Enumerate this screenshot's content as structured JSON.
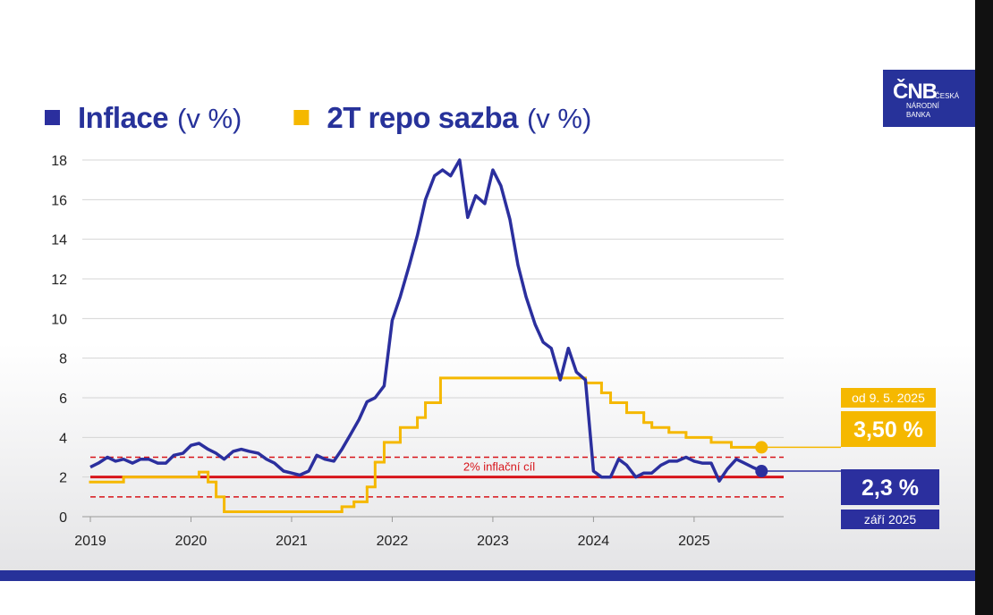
{
  "chart_data": {
    "type": "line",
    "unit": "(v %)",
    "xlim": [
      2019,
      2025.89
    ],
    "xticks": [
      2019,
      2020,
      2021,
      2022,
      2023,
      2024,
      2025
    ],
    "ylim": [
      0,
      18
    ],
    "yticks": [
      0,
      2,
      4,
      6,
      8,
      10,
      12,
      14,
      16,
      18
    ],
    "grid": true,
    "series": [
      {
        "name": "Inflace",
        "color": "#2b2f9e",
        "x": [
          2019.0,
          2019.08,
          2019.17,
          2019.25,
          2019.33,
          2019.42,
          2019.5,
          2019.58,
          2019.67,
          2019.75,
          2019.83,
          2019.92,
          2020.0,
          2020.08,
          2020.17,
          2020.25,
          2020.33,
          2020.42,
          2020.5,
          2020.58,
          2020.67,
          2020.75,
          2020.83,
          2020.92,
          2021.0,
          2021.08,
          2021.17,
          2021.25,
          2021.33,
          2021.42,
          2021.5,
          2021.58,
          2021.67,
          2021.75,
          2021.83,
          2021.92,
          2022.0,
          2022.08,
          2022.17,
          2022.25,
          2022.33,
          2022.42,
          2022.5,
          2022.58,
          2022.67,
          2022.75,
          2022.83,
          2022.92,
          2023.0,
          2023.08,
          2023.17,
          2023.25,
          2023.33,
          2023.42,
          2023.5,
          2023.58,
          2023.67,
          2023.75,
          2023.83,
          2023.92,
          2024.0,
          2024.08,
          2024.17,
          2024.25,
          2024.33,
          2024.42,
          2024.5,
          2024.58,
          2024.67,
          2024.75,
          2024.83,
          2024.92,
          2025.0,
          2025.08,
          2025.17,
          2025.25,
          2025.33,
          2025.42,
          2025.5,
          2025.58,
          2025.67
        ],
        "values": [
          2.5,
          2.7,
          3.0,
          2.8,
          2.9,
          2.7,
          2.9,
          2.9,
          2.7,
          2.7,
          3.1,
          3.2,
          3.6,
          3.7,
          3.4,
          3.2,
          2.9,
          3.3,
          3.4,
          3.3,
          3.2,
          2.9,
          2.7,
          2.3,
          2.2,
          2.1,
          2.3,
          3.1,
          2.9,
          2.8,
          3.4,
          4.1,
          4.9,
          5.8,
          6.0,
          6.6,
          9.9,
          11.1,
          12.7,
          14.2,
          16.0,
          17.2,
          17.5,
          17.2,
          18.0,
          15.1,
          16.2,
          15.8,
          17.5,
          16.7,
          15.0,
          12.7,
          11.1,
          9.7,
          8.8,
          8.5,
          6.9,
          8.5,
          7.3,
          6.9,
          2.3,
          2.0,
          2.0,
          2.9,
          2.6,
          2.0,
          2.2,
          2.2,
          2.6,
          2.8,
          2.8,
          3.0,
          2.8,
          2.7,
          2.7,
          1.8,
          2.4,
          2.9,
          2.7,
          2.5,
          2.3
        ],
        "last_value_label": "2,3 %",
        "last_note": "září 2025"
      },
      {
        "name": "2T repo sazba",
        "color": "#f5b800",
        "step": true,
        "x": [
          2019.0,
          2019.33,
          2020.08,
          2020.17,
          2020.25,
          2020.33,
          2021.5,
          2021.62,
          2021.75,
          2021.83,
          2021.92,
          2022.08,
          2022.25,
          2022.33,
          2022.48,
          2023.92,
          2024.08,
          2024.17,
          2024.33,
          2024.5,
          2024.58,
          2024.75,
          2024.92,
          2025.17,
          2025.37
        ],
        "values": [
          1.75,
          2.0,
          2.25,
          1.75,
          1.0,
          0.25,
          0.5,
          0.75,
          1.5,
          2.75,
          3.75,
          4.5,
          5.0,
          5.75,
          7.0,
          6.75,
          6.25,
          5.75,
          5.25,
          4.75,
          4.5,
          4.25,
          4.0,
          3.75,
          3.5
        ],
        "last_value_label": "3,50 %",
        "last_note": "od 9. 5. 2025"
      }
    ],
    "target": {
      "label": "2% inflační cíl",
      "value": 2,
      "band": [
        1,
        3
      ],
      "color": "#d7141a"
    }
  },
  "logo": {
    "mark": "ČNB",
    "lines": [
      "ČESKÁ",
      "NÁRODNÍ",
      "BANKA"
    ]
  }
}
